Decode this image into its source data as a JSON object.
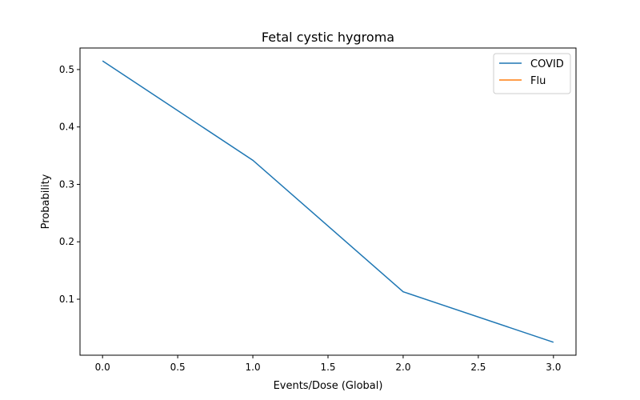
{
  "chart_data": {
    "type": "line",
    "title": "Fetal cystic hygroma",
    "xlabel": "Events/Dose (Global)",
    "ylabel": "Probability",
    "xlim": [
      -0.15,
      3.15
    ],
    "ylim": [
      0.0025,
      0.5375
    ],
    "x_ticks": [
      0.0,
      0.5,
      1.0,
      1.5,
      2.0,
      2.5,
      3.0
    ],
    "x_tick_labels": [
      "0.0",
      "0.5",
      "1.0",
      "1.5",
      "2.0",
      "2.5",
      "3.0"
    ],
    "y_ticks": [
      0.1,
      0.2,
      0.3,
      0.4,
      0.5
    ],
    "y_tick_labels": [
      "0.1",
      "0.2",
      "0.3",
      "0.4",
      "0.5"
    ],
    "grid": false,
    "legend_position": "top-right",
    "series": [
      {
        "name": "COVID",
        "color": "#1f77b4",
        "x": [
          0,
          1,
          2,
          3
        ],
        "y": [
          0.515,
          0.342,
          0.113,
          0.025
        ]
      },
      {
        "name": "Flu",
        "color": "#ff7f0e",
        "x": [],
        "y": []
      }
    ]
  }
}
